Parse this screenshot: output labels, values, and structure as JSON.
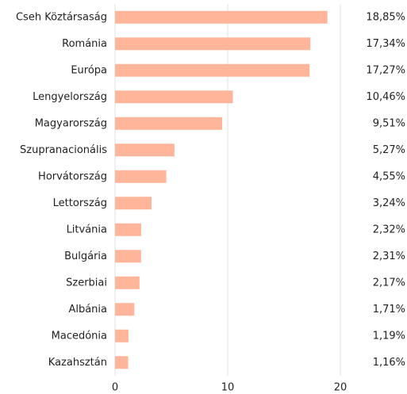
{
  "chart_data": {
    "type": "bar",
    "orientation": "horizontal",
    "categories": [
      "Cseh Köztársaság",
      "Románia",
      "Európa",
      "Lengyelország",
      "Magyarország",
      "Szupranacionális",
      "Horvátország",
      "Lettország",
      "Litvánia",
      "Bulgária",
      "Szerbiai",
      "Albánia",
      "Macedónia",
      "Kazahsztán"
    ],
    "values": [
      18.85,
      17.34,
      17.27,
      10.46,
      9.51,
      5.27,
      4.55,
      3.24,
      2.32,
      2.31,
      2.17,
      1.71,
      1.19,
      1.16
    ],
    "value_labels": [
      "18,85%",
      "17,34%",
      "17,27%",
      "10,46%",
      "9,51%",
      "5,27%",
      "4,55%",
      "3,24%",
      "2,32%",
      "2,31%",
      "2,17%",
      "1,71%",
      "1,19%",
      "1,16%"
    ],
    "color": "#ffb59a",
    "xlim": [
      0,
      20
    ],
    "xticks": [
      0,
      10,
      20
    ],
    "grid": true
  }
}
